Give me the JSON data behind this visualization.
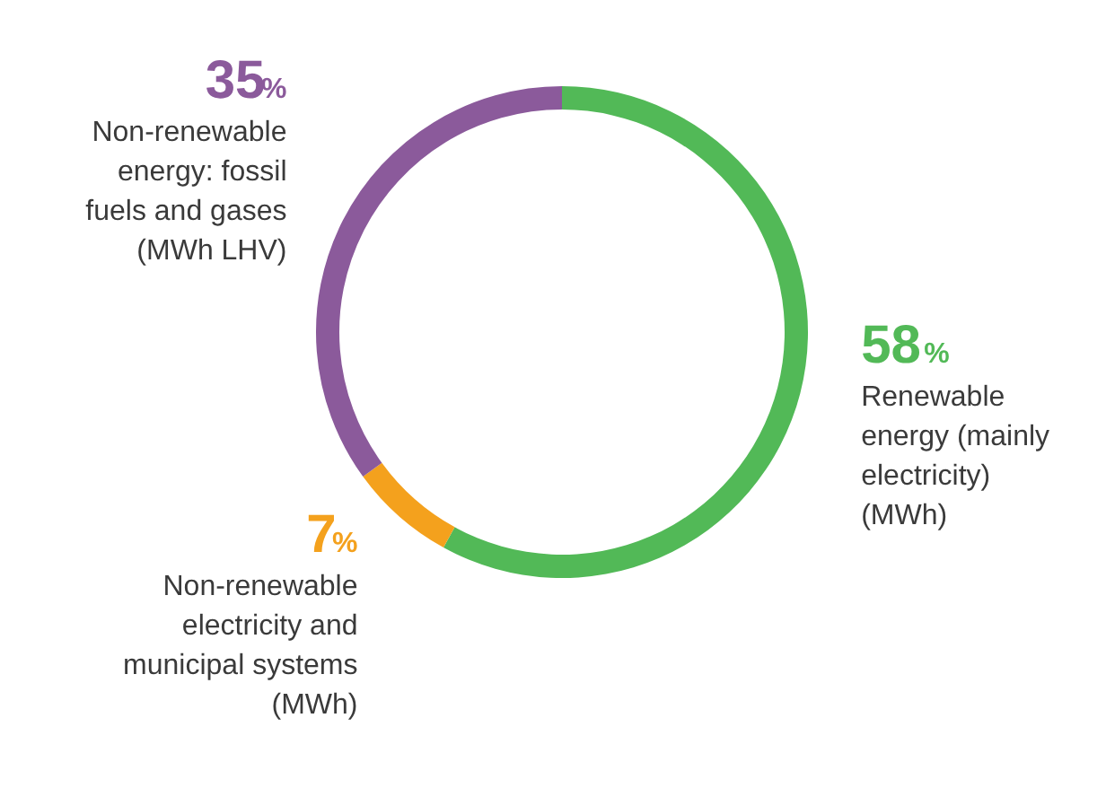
{
  "chart_data": {
    "type": "donut",
    "categories": [
      "Renewable energy (mainly electricity) (MWh)",
      "Non-renewable electricity and municipal systems (MWh)",
      "Non-renewable energy: fossil fuels and gases (MWh LHV)"
    ],
    "values": [
      58,
      7,
      35
    ],
    "value_labels": [
      "58%",
      "7%",
      "35%"
    ],
    "colors": [
      "#52b957",
      "#f4a11d",
      "#8b5a9b"
    ]
  }
}
